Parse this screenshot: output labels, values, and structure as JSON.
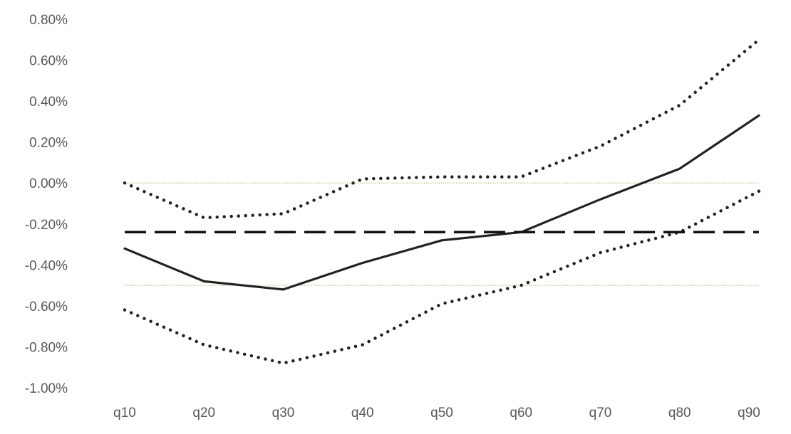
{
  "chart_data": {
    "type": "line",
    "title": "",
    "xlabel": "",
    "ylabel": "",
    "categories": [
      "q10",
      "q20",
      "q30",
      "q40",
      "q50",
      "q60",
      "q70",
      "q80",
      "q90"
    ],
    "y_ticks": [
      "0.80%",
      "0.60%",
      "0.40%",
      "0.20%",
      "0.00%",
      "-0.20%",
      "-0.40%",
      "-0.60%",
      "-0.80%",
      "-1.00%"
    ],
    "ylim": [
      -1.0,
      0.8
    ],
    "y_unit": "%",
    "grid": false,
    "legend": "none",
    "series": [
      {
        "style": "solid",
        "color": "#222222",
        "values": [
          -0.32,
          -0.48,
          -0.52,
          -0.39,
          -0.28,
          -0.24,
          -0.08,
          0.07,
          0.33
        ]
      },
      {
        "style": "dotted",
        "color": "#222222",
        "values": [
          0.0,
          -0.17,
          -0.15,
          0.02,
          0.03,
          0.03,
          0.18,
          0.38,
          0.7
        ]
      },
      {
        "style": "dotted",
        "color": "#222222",
        "values": [
          -0.62,
          -0.79,
          -0.88,
          -0.79,
          -0.59,
          -0.5,
          -0.34,
          -0.24,
          -0.04
        ]
      },
      {
        "style": "dashed",
        "color": "#111111",
        "values": [
          -0.24,
          -0.24,
          -0.24,
          -0.24,
          -0.24,
          -0.24,
          -0.24,
          -0.24,
          -0.24
        ]
      }
    ],
    "reference_lines": [
      {
        "y": 0.0,
        "color": "#a9d18e"
      },
      {
        "y": -0.5,
        "color": "#a9d18e"
      }
    ]
  }
}
